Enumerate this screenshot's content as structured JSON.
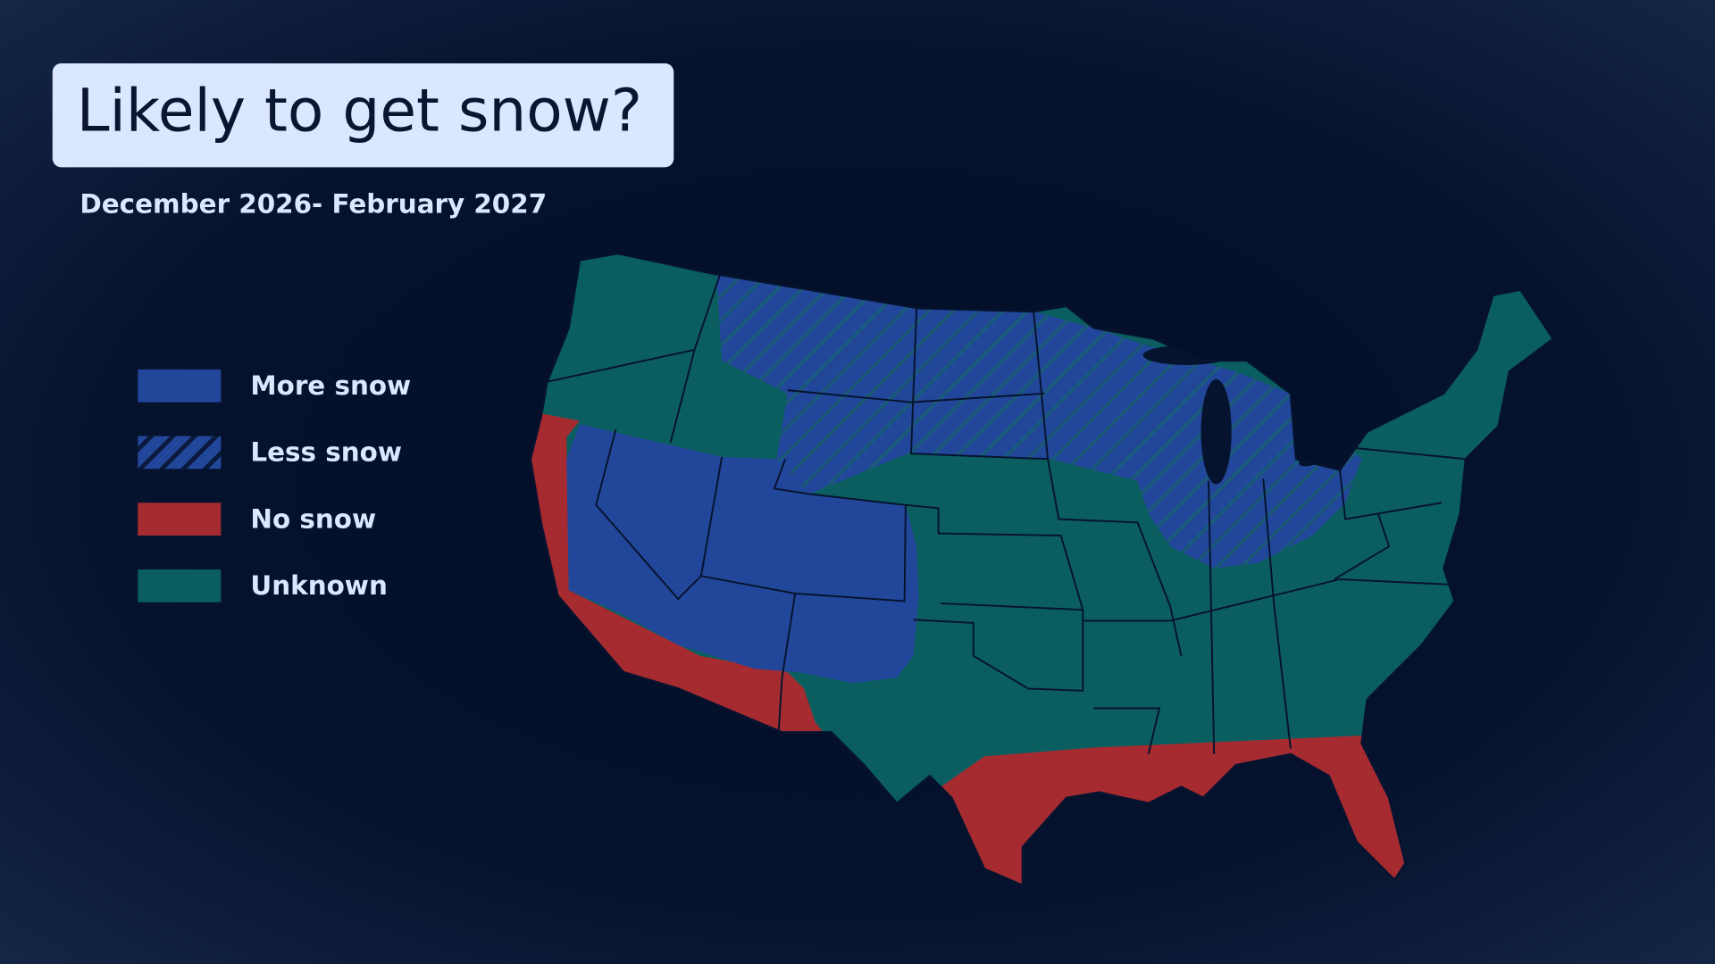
{
  "title": "Likely to get snow?",
  "subtitle": "December 2026- February 2027",
  "legend": {
    "items": [
      {
        "label": "More snow",
        "color": "#22479a"
      },
      {
        "label": "Less snow",
        "color": "#22479a",
        "pattern": "hatched"
      },
      {
        "label": "No snow",
        "color": "#a62b31"
      },
      {
        "label": "Unknown",
        "color": "#0b5e5f"
      }
    ]
  }
}
